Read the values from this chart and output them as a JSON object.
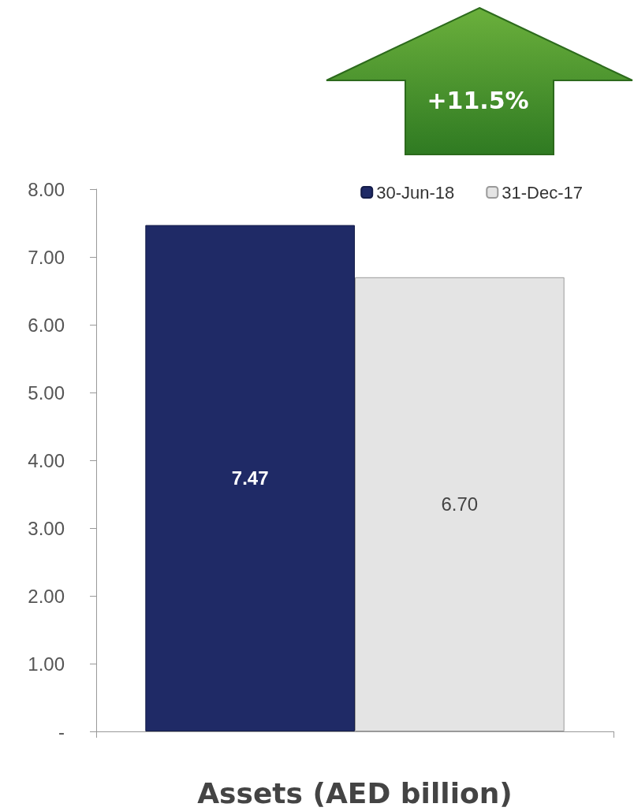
{
  "chart_data": {
    "type": "bar",
    "xlabel": "Assets (AED billion)",
    "categories": [
      null
    ],
    "series": [
      {
        "name": "30-Jun-18",
        "color": "#1f2a66",
        "values": [
          7.47
        ],
        "value_labels": [
          "7.47"
        ]
      },
      {
        "name": "31-Dec-17",
        "color": "#e4e4e4",
        "values": [
          6.7
        ],
        "value_labels": [
          "6.70"
        ]
      }
    ],
    "ylim": [
      0,
      8
    ],
    "yticks": [
      {
        "value": 0,
        "label": "-"
      },
      {
        "value": 1,
        "label": "1.00"
      },
      {
        "value": 2,
        "label": "2.00"
      },
      {
        "value": 3,
        "label": "3.00"
      },
      {
        "value": 4,
        "label": "4.00"
      },
      {
        "value": 5,
        "label": "5.00"
      },
      {
        "value": 6,
        "label": "6.00"
      },
      {
        "value": 7,
        "label": "7.00"
      },
      {
        "value": 8,
        "label": "8.00"
      }
    ],
    "grid": false,
    "legend": "top right",
    "annotations": [
      "+11.5%"
    ]
  }
}
